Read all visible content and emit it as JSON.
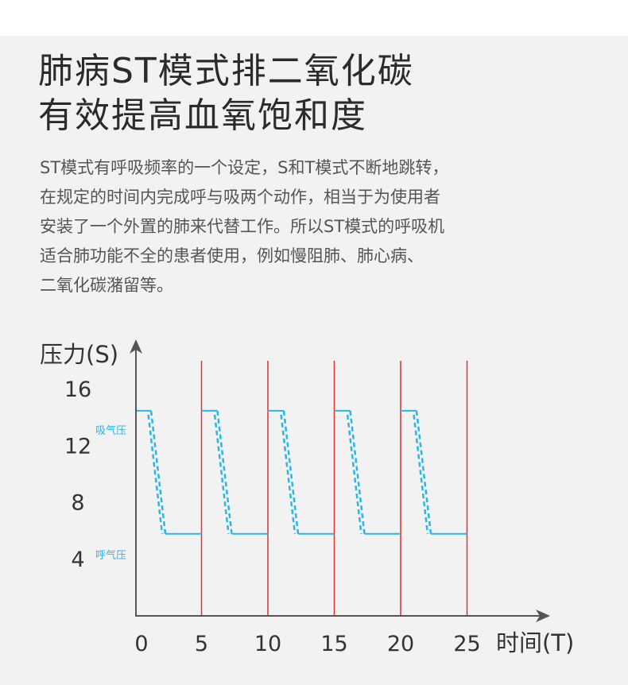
{
  "title": {
    "line1": "肺病ST模式排二氧化碳",
    "line2": "有效提高血氧饱和度"
  },
  "description": {
    "lines": [
      "ST模式有呼吸频率的一个设定，S和T模式不断地跳转，",
      "在规定的时间内完成呼与吸两个动作，相当于为使用者",
      "安装了一个外置的肺来代替工作。所以ST模式的呼吸机",
      "适合肺功能不全的患者使用，例如慢阻肺、肺心病、",
      "二氧化碳潴留等。"
    ]
  },
  "chart_data": {
    "type": "line",
    "ylabel": "压力(S)",
    "xlabel": "时间(T)",
    "x_ticks": [
      "0",
      "5",
      "10",
      "15",
      "20",
      "25"
    ],
    "y_ticks": [
      "16",
      "12",
      "8",
      "4"
    ],
    "xlim": [
      0,
      30
    ],
    "ylim": [
      0,
      20
    ],
    "annotations": {
      "inhale": "吸气压",
      "exhale": "呼气压"
    },
    "inhale_pressure": 14.5,
    "exhale_pressure": 5.8,
    "cycle_boundaries": [
      5,
      10,
      15,
      20,
      25
    ],
    "series_color": "#29b6e8",
    "boundary_color": "#e03030",
    "axis_color": "#555555"
  }
}
